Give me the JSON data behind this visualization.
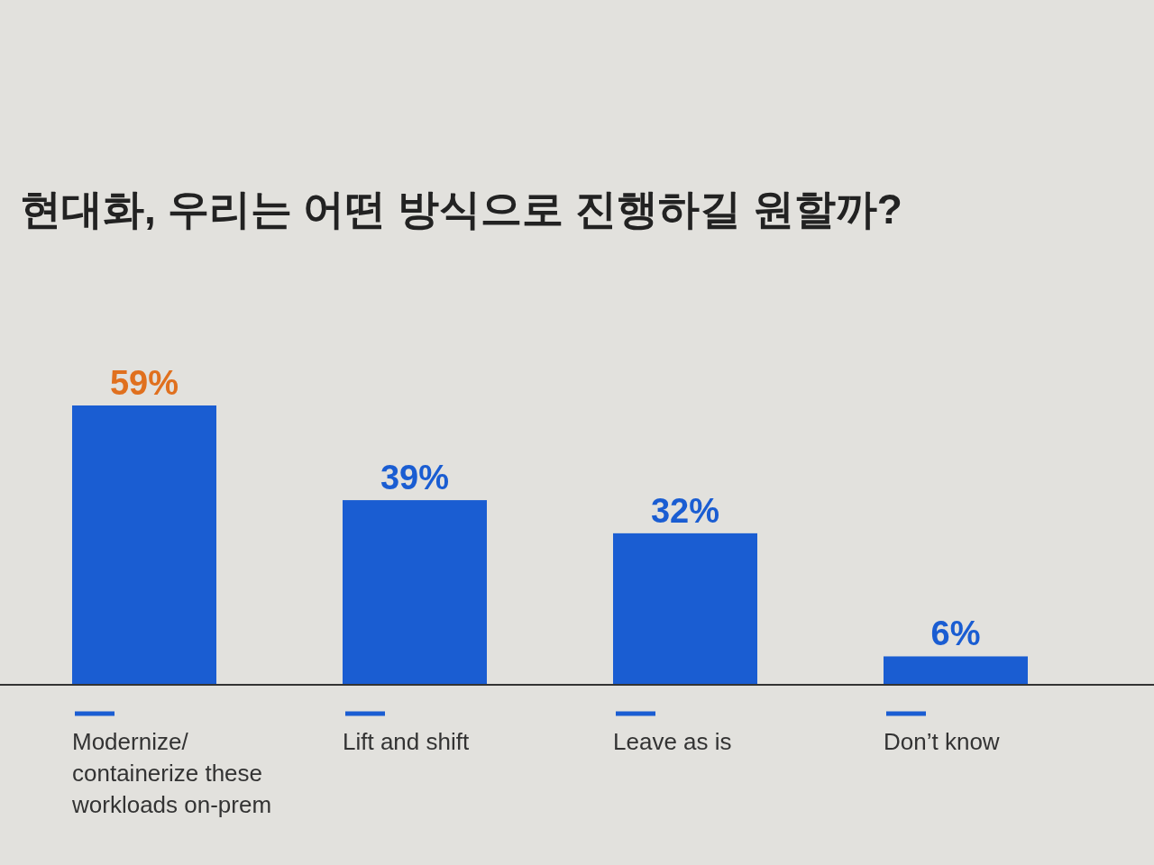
{
  "chart_data": {
    "type": "bar",
    "title": "현대화, 우리는 어떤 방식으로 진행하길 원할까?",
    "categories": [
      "Modernize/ containerize these workloads on-prem",
      "Lift and shift",
      "Leave as is",
      "Don’t know"
    ],
    "values": [
      59,
      39,
      32,
      6
    ],
    "color": "#1a5dd2",
    "value_labels": [
      "59%",
      "39%",
      "32%",
      "6%"
    ]
  }
}
